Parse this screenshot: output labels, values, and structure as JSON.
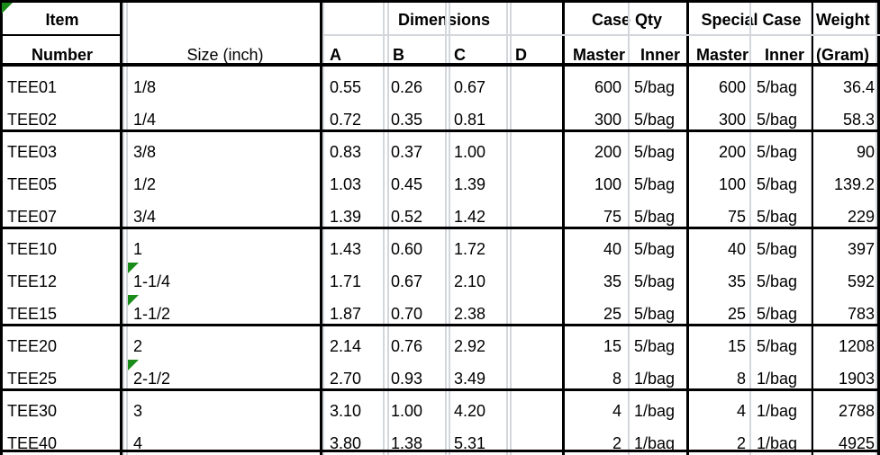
{
  "header": {
    "item_top": "Item",
    "item_bottom": "Number",
    "size": "Size (inch)",
    "dimensions": "Dimensions",
    "dim_a": "A",
    "dim_b": "B",
    "dim_c": "C",
    "dim_d": "D",
    "case_qty": "Case Qty",
    "special_case": "Special Case",
    "weight_top": "Weight",
    "master": "Master",
    "inner": "Inner",
    "special_master": "Master",
    "special_inner": "Inner",
    "weight_unit": "(Gram)"
  },
  "rows": [
    {
      "item": "TEE01",
      "size": "1/8",
      "a": "0.55",
      "b": "0.26",
      "c": "0.67",
      "master": "600",
      "inner": "5/bag",
      "smaster": "600",
      "sinner": "5/bag",
      "weight": "36.4"
    },
    {
      "item": "TEE02",
      "size": "1/4",
      "a": "0.72",
      "b": "0.35",
      "c": "0.81",
      "master": "300",
      "inner": "5/bag",
      "smaster": "300",
      "sinner": "5/bag",
      "weight": "58.3"
    },
    {
      "item": "TEE03",
      "size": "3/8",
      "a": "0.83",
      "b": "0.37",
      "c": "1.00",
      "master": "200",
      "inner": "5/bag",
      "smaster": "200",
      "sinner": "5/bag",
      "weight": "90"
    },
    {
      "item": "TEE05",
      "size": "1/2",
      "a": "1.03",
      "b": "0.45",
      "c": "1.39",
      "master": "100",
      "inner": "5/bag",
      "smaster": "100",
      "sinner": "5/bag",
      "weight": "139.2"
    },
    {
      "item": "TEE07",
      "size": "3/4",
      "a": "1.39",
      "b": "0.52",
      "c": "1.42",
      "master": "75",
      "inner": "5/bag",
      "smaster": "75",
      "sinner": "5/bag",
      "weight": "229"
    },
    {
      "item": "TEE10",
      "size": "1",
      "a": "1.43",
      "b": "0.60",
      "c": "1.72",
      "master": "40",
      "inner": "5/bag",
      "smaster": "40",
      "sinner": "5/bag",
      "weight": "397"
    },
    {
      "item": "TEE12",
      "size": "1-1/4",
      "a": "1.71",
      "b": "0.67",
      "c": "2.10",
      "master": "35",
      "inner": "5/bag",
      "smaster": "35",
      "sinner": "5/bag",
      "weight": "592"
    },
    {
      "item": "TEE15",
      "size": "1-1/2",
      "a": "1.87",
      "b": "0.70",
      "c": "2.38",
      "master": "25",
      "inner": "5/bag",
      "smaster": "25",
      "sinner": "5/bag",
      "weight": "783"
    },
    {
      "item": "TEE20",
      "size": "2",
      "a": "2.14",
      "b": "0.76",
      "c": "2.92",
      "master": "15",
      "inner": "5/bag",
      "smaster": "15",
      "sinner": "5/bag",
      "weight": "1208"
    },
    {
      "item": "TEE25",
      "size": "2-1/2",
      "a": "2.70",
      "b": "0.93",
      "c": "3.49",
      "master": "8",
      "inner": "1/bag",
      "smaster": "8",
      "sinner": "1/bag",
      "weight": "1903"
    },
    {
      "item": "TEE30",
      "size": "3",
      "a": "3.10",
      "b": "1.00",
      "c": "4.20",
      "master": "4",
      "inner": "1/bag",
      "smaster": "4",
      "sinner": "1/bag",
      "weight": "2788"
    },
    {
      "item": "TEE40",
      "size": "4",
      "a": "3.80",
      "b": "1.38",
      "c": "5.31",
      "master": "2",
      "inner": "1/bag",
      "smaster": "2",
      "sinner": "1/bag",
      "weight": "4925"
    }
  ],
  "colors": {
    "grid_black": "#000000",
    "grid_grey": "#d3d7dc",
    "comment_marker": "#1a8c1a"
  }
}
